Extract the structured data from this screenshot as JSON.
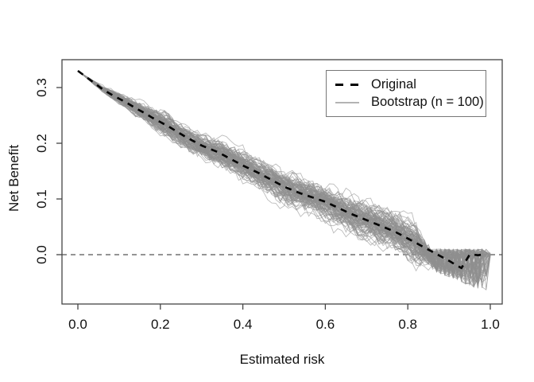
{
  "figure": {
    "background": "#ffffff"
  },
  "axes": {
    "xlabel": "Estimated risk",
    "ylabel": "Net Benefit",
    "x_tick_values": [
      0,
      0.2,
      0.4,
      0.6,
      0.8,
      1.0
    ],
    "x_tick_labels": [
      "0.0",
      "0.2",
      "0.4",
      "0.6",
      "0.8",
      "1.0"
    ],
    "y_tick_values": [
      0,
      0.1,
      0.2,
      0.3
    ],
    "y_tick_labels": [
      "0.0",
      "0.1",
      "0.2",
      "0.3"
    ]
  },
  "legend": {
    "items": [
      {
        "label": "Original",
        "line_style": "dashed",
        "color": "#000000"
      },
      {
        "label": "Bootstrap (n = 100)",
        "line_style": "solid",
        "color": "#b3b3b3"
      }
    ]
  },
  "colors": {
    "axis": "#444444",
    "text": "#111111",
    "original_line": "#000000",
    "bootstrap_line": "#8f8f8f",
    "reference_line": "#555555"
  },
  "chart_data": {
    "type": "line",
    "title": "",
    "xlabel": "Estimated risk",
    "ylabel": "Net Benefit",
    "xlim": [
      0,
      1
    ],
    "ylim": [
      -0.089,
      0.35
    ],
    "grid": false,
    "legend_position": "top-right",
    "reference_line": {
      "y": 0,
      "style": "dashed",
      "color": "#555555"
    },
    "series": [
      {
        "name": "Original",
        "color": "#000000",
        "style": "dashed",
        "width": 2.6,
        "x": [
          0.0,
          0.02,
          0.04,
          0.06,
          0.08,
          0.1,
          0.12,
          0.14,
          0.16,
          0.18,
          0.2,
          0.22,
          0.24,
          0.26,
          0.28,
          0.3,
          0.32,
          0.34,
          0.36,
          0.38,
          0.4,
          0.42,
          0.44,
          0.46,
          0.48,
          0.5,
          0.52,
          0.54,
          0.56,
          0.58,
          0.6,
          0.62,
          0.64,
          0.66,
          0.68,
          0.7,
          0.72,
          0.74,
          0.76,
          0.78,
          0.8,
          0.82,
          0.84,
          0.86,
          0.88,
          0.9,
          0.92,
          0.93,
          0.94,
          0.95,
          0.96,
          0.97,
          0.98
        ],
        "y": [
          0.33,
          0.319,
          0.308,
          0.297,
          0.288,
          0.28,
          0.272,
          0.263,
          0.255,
          0.246,
          0.238,
          0.23,
          0.221,
          0.212,
          0.204,
          0.196,
          0.19,
          0.184,
          0.176,
          0.168,
          0.16,
          0.153,
          0.146,
          0.138,
          0.13,
          0.122,
          0.116,
          0.11,
          0.105,
          0.1,
          0.095,
          0.088,
          0.081,
          0.074,
          0.068,
          0.062,
          0.056,
          0.05,
          0.044,
          0.037,
          0.029,
          0.021,
          0.013,
          0.005,
          -0.003,
          -0.011,
          -0.02,
          -0.024,
          -0.012,
          0.0,
          0.0,
          -0.001,
          0.0
        ]
      }
    ],
    "bootstrap": {
      "name": "Bootstrap (n = 100)",
      "n": 100,
      "seed": 20,
      "color": "#8f8f8f",
      "opacity": 0.6,
      "width": 0.9,
      "x_step": 0.01,
      "band_halfwidth_mid": 0.013,
      "tail_start": 0.82,
      "tail_min": -0.072,
      "end_x_range": [
        0.96,
        1.0
      ]
    }
  }
}
